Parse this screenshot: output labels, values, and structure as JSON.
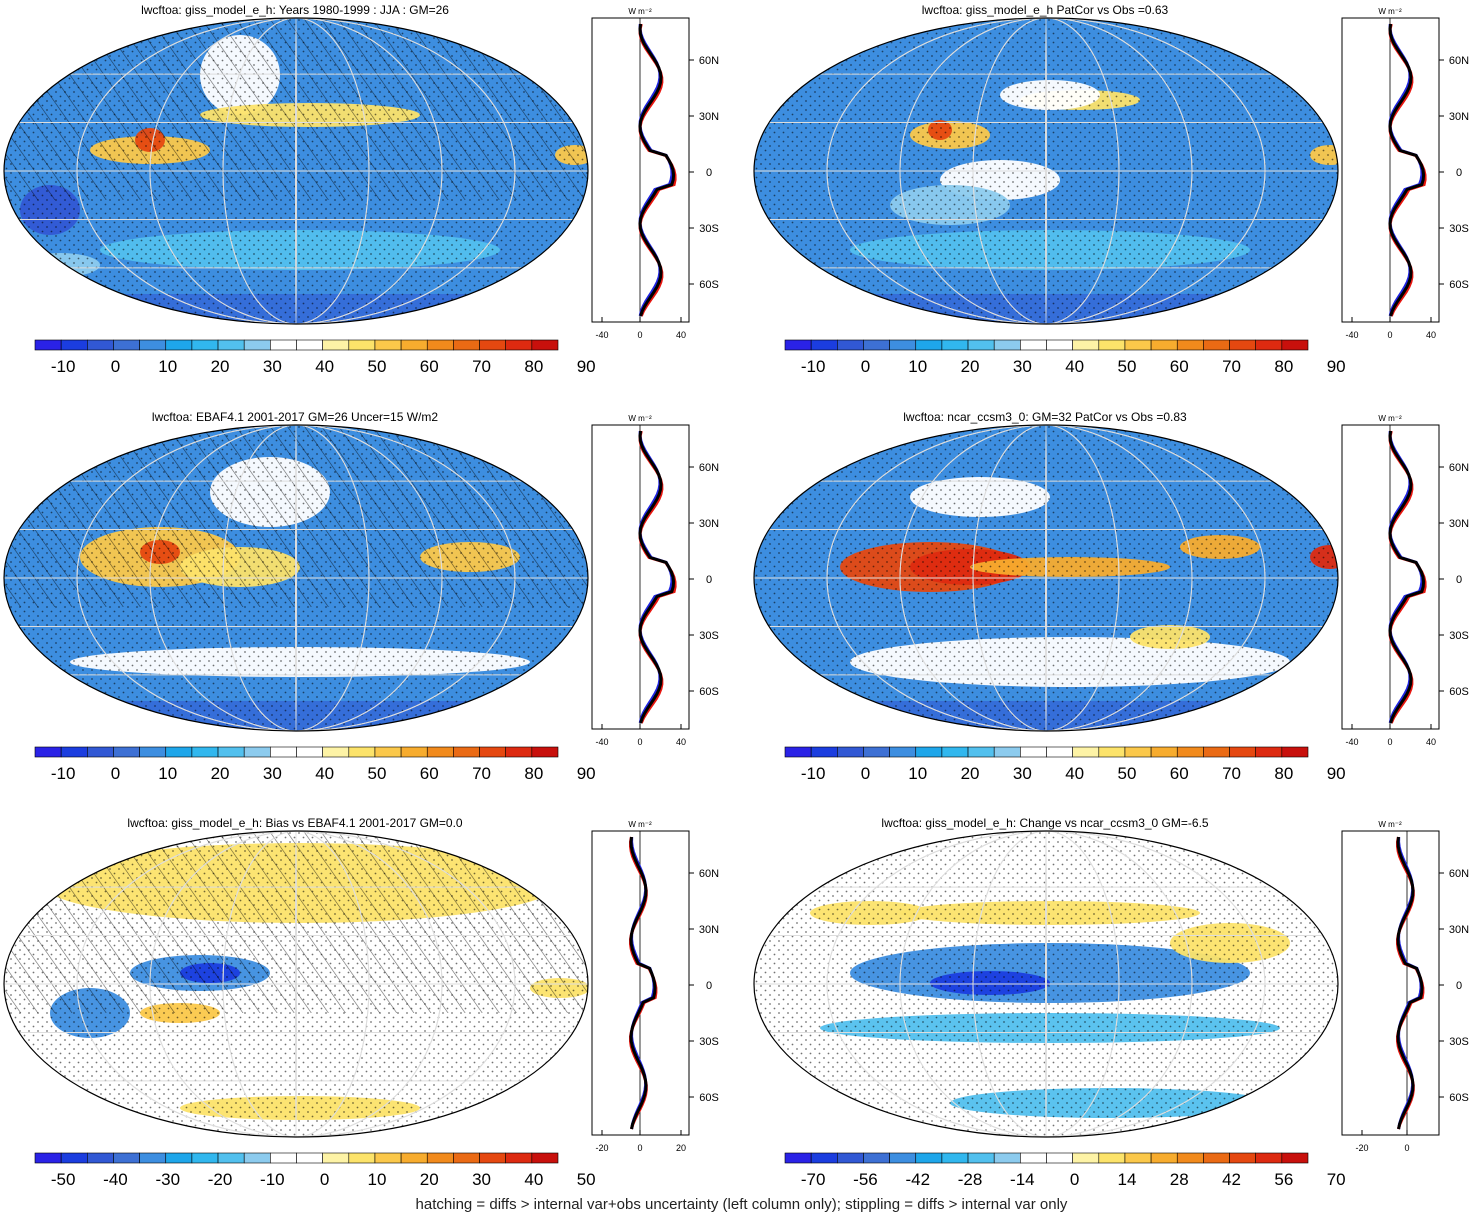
{
  "panels": [
    {
      "title": "lwcftoa: giss_model_e_h: Years 1980-1999 : JJA : GM=26",
      "colorbar_labels": [
        "-10",
        "0",
        "10",
        "20",
        "30",
        "40",
        "50",
        "60",
        "70",
        "80",
        "90"
      ],
      "zonal_xticks": [
        "-40",
        "0",
        "40"
      ],
      "zonal_yticks": [
        "60N",
        "30N",
        "0",
        "30S",
        "60S"
      ],
      "zonal_units": "W m⁻²",
      "hatched": true
    },
    {
      "title": "lwcftoa: giss_model_e_h PatCor vs Obs =0.63",
      "colorbar_labels": [
        "-10",
        "0",
        "10",
        "20",
        "30",
        "40",
        "50",
        "60",
        "70",
        "80",
        "90"
      ],
      "zonal_xticks": [
        "-40",
        "0",
        "40"
      ],
      "zonal_yticks": [
        "60N",
        "30N",
        "0",
        "30S",
        "60S"
      ],
      "zonal_units": "W m⁻²",
      "hatched": false
    },
    {
      "title": "lwcftoa: EBAF4.1 2001-2017 GM=26 Uncer=15 W/m2",
      "colorbar_labels": [
        "-10",
        "0",
        "10",
        "20",
        "30",
        "40",
        "50",
        "60",
        "70",
        "80",
        "90"
      ],
      "zonal_xticks": [
        "-40",
        "0",
        "40"
      ],
      "zonal_yticks": [
        "60N",
        "30N",
        "0",
        "30S",
        "60S"
      ],
      "zonal_units": "W m⁻²",
      "hatched": true
    },
    {
      "title": "lwcftoa: ncar_ccsm3_0: GM=32 PatCor vs Obs =0.83",
      "colorbar_labels": [
        "-10",
        "0",
        "10",
        "20",
        "30",
        "40",
        "50",
        "60",
        "70",
        "80",
        "90"
      ],
      "zonal_xticks": [
        "-40",
        "0",
        "40"
      ],
      "zonal_yticks": [
        "60N",
        "30N",
        "0",
        "30S",
        "60S"
      ],
      "zonal_units": "W m⁻²",
      "hatched": false
    },
    {
      "title": "lwcftoa: giss_model_e_h: Bias vs EBAF4.1 2001-2017 GM=0.0",
      "colorbar_labels": [
        "-50",
        "-40",
        "-30",
        "-20",
        "-10",
        "0",
        "10",
        "20",
        "30",
        "40",
        "50"
      ],
      "zonal_xticks": [
        "-20",
        "0",
        "20"
      ],
      "zonal_yticks": [
        "60N",
        "30N",
        "0",
        "30S",
        "60S"
      ],
      "zonal_units": "W m⁻²",
      "hatched": true
    },
    {
      "title": "lwcftoa: giss_model_e_h: Change vs ncar_ccsm3_0 GM=-6.5",
      "colorbar_labels": [
        "-70",
        "-56",
        "-42",
        "-28",
        "-14",
        "0",
        "14",
        "28",
        "42",
        "56",
        "70"
      ],
      "zonal_xticks": [
        "-20",
        "0"
      ],
      "zonal_yticks": [
        "60N",
        "30N",
        "0",
        "30S",
        "60S"
      ],
      "zonal_units": "W m⁻²",
      "hatched": false
    }
  ],
  "colors": {
    "colorbar": [
      "#2a22e6",
      "#1b3ddf",
      "#3158d4",
      "#3d70d4",
      "#3d8ee0",
      "#1ea6ea",
      "#31b7ee",
      "#52c0ee",
      "#8ccbee",
      "#ffffff",
      "#ffffff",
      "#fdf3a6",
      "#fce36a",
      "#fbc84a",
      "#f7ac2e",
      "#f18a1c",
      "#ea6a14",
      "#e54810",
      "#dd2a10",
      "#c8100c"
    ],
    "zonal_model": "#e8150e",
    "zonal_obs": "#1f24e0",
    "zonal_mean": "#000000"
  },
  "footer": "hatching = diffs > internal var+obs uncertainty (left column only); stippling = diffs > internal var only"
}
